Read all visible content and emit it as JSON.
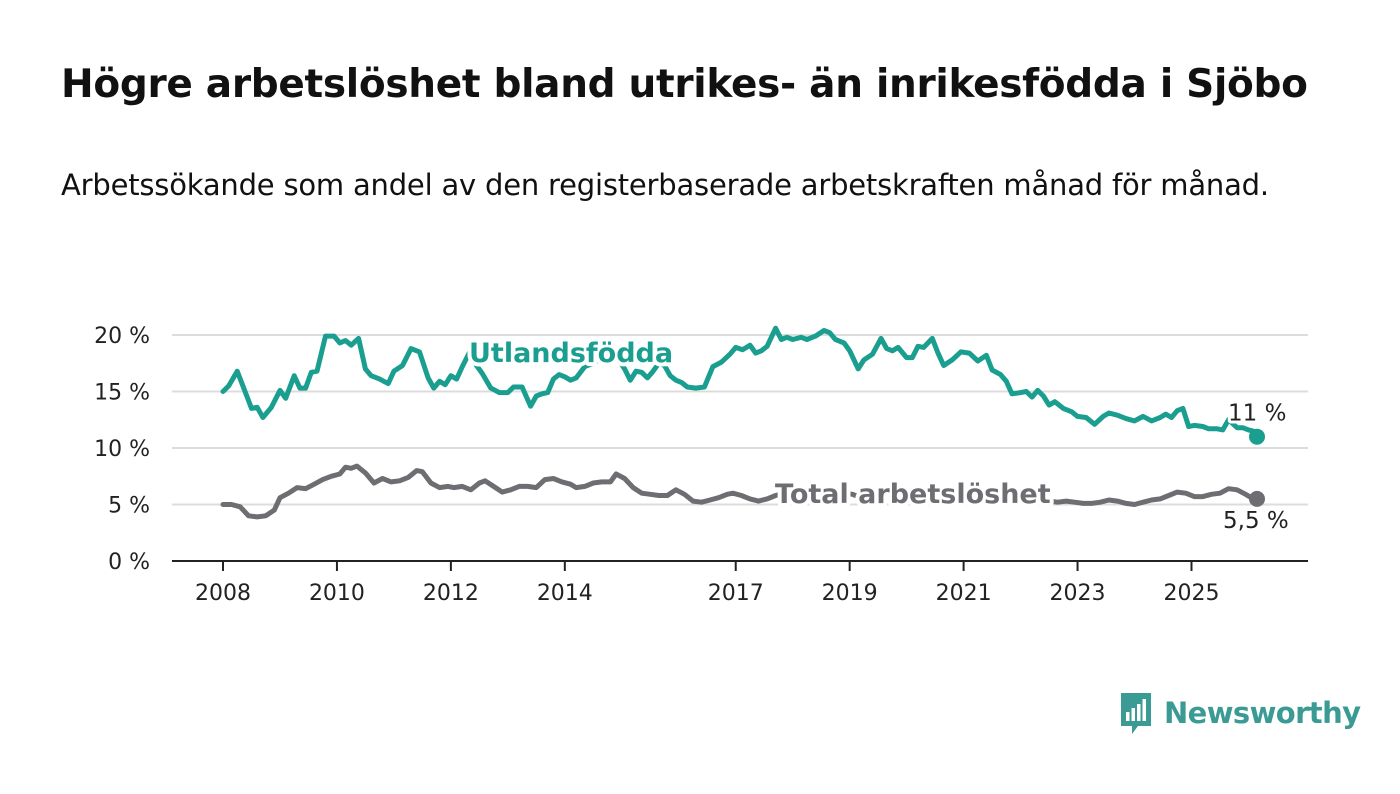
{
  "title": "Högre arbetslöshet bland utrikes- än inrikesfödda i Sjöbo",
  "subtitle": "Arbetssökande som andel av den registerbaserade arbetskraften månad för månad.",
  "logo": {
    "text": "Newsworthy",
    "icon": "bar-chart-speech-bubble-icon"
  },
  "colors": {
    "utlandsfodda": "#1a9e8f",
    "total": "#6e6e72",
    "logo": "#3a9a94",
    "text": "#111111"
  },
  "chart_data": {
    "type": "line",
    "xlim": [
      2008,
      2025.5
    ],
    "ylim": [
      0,
      20
    ],
    "y_ticks": [
      {
        "value": 0,
        "label": "0 %"
      },
      {
        "value": 5,
        "label": "5 %"
      },
      {
        "value": 10,
        "label": "10 %"
      },
      {
        "value": 15,
        "label": "15 %"
      },
      {
        "value": 20,
        "label": "20 %"
      }
    ],
    "x_ticks": [
      {
        "value": 2008,
        "label": "2008"
      },
      {
        "value": 2010,
        "label": "2010"
      },
      {
        "value": 2012,
        "label": "2012"
      },
      {
        "value": 2014,
        "label": "2014"
      },
      {
        "value": 2017,
        "label": "2017"
      },
      {
        "value": 2019,
        "label": "2019"
      },
      {
        "value": 2021,
        "label": "2021"
      },
      {
        "value": 2023,
        "label": "2023"
      },
      {
        "value": 2025,
        "label": "2025"
      }
    ],
    "grid": true,
    "series": [
      {
        "name": "Utlandsfödda",
        "color": "#1a9e8f",
        "end_label": "11 %",
        "points": [
          [
            2008.0,
            15.0
          ],
          [
            2008.1,
            15.5
          ],
          [
            2008.25,
            16.8
          ],
          [
            2008.35,
            15.5
          ],
          [
            2008.5,
            13.5
          ],
          [
            2008.6,
            13.6
          ],
          [
            2008.7,
            12.7
          ],
          [
            2008.85,
            13.6
          ],
          [
            2009.0,
            15.1
          ],
          [
            2009.1,
            14.4
          ],
          [
            2009.25,
            16.4
          ],
          [
            2009.35,
            15.3
          ],
          [
            2009.45,
            15.3
          ],
          [
            2009.55,
            16.7
          ],
          [
            2009.65,
            16.8
          ],
          [
            2009.8,
            19.9
          ],
          [
            2009.95,
            19.9
          ],
          [
            2010.05,
            19.3
          ],
          [
            2010.15,
            19.5
          ],
          [
            2010.25,
            19.1
          ],
          [
            2010.38,
            19.7
          ],
          [
            2010.5,
            17.0
          ],
          [
            2010.6,
            16.4
          ],
          [
            2010.75,
            16.1
          ],
          [
            2010.9,
            15.7
          ],
          [
            2011.0,
            16.8
          ],
          [
            2011.15,
            17.3
          ],
          [
            2011.3,
            18.8
          ],
          [
            2011.45,
            18.5
          ],
          [
            2011.6,
            16.2
          ],
          [
            2011.7,
            15.3
          ],
          [
            2011.8,
            15.9
          ],
          [
            2011.9,
            15.6
          ],
          [
            2012.0,
            16.4
          ],
          [
            2012.1,
            16.1
          ],
          [
            2012.2,
            17.2
          ],
          [
            2012.35,
            18.7
          ],
          [
            2012.45,
            17.3
          ],
          [
            2012.55,
            16.6
          ],
          [
            2012.7,
            15.3
          ],
          [
            2012.85,
            14.9
          ],
          [
            2013.0,
            14.9
          ],
          [
            2013.1,
            15.4
          ],
          [
            2013.25,
            15.4
          ],
          [
            2013.4,
            13.7
          ],
          [
            2013.5,
            14.6
          ],
          [
            2013.6,
            14.8
          ],
          [
            2013.7,
            14.9
          ],
          [
            2013.8,
            16.1
          ],
          [
            2013.9,
            16.5
          ],
          [
            2014.0,
            16.3
          ],
          [
            2014.1,
            16.0
          ],
          [
            2014.2,
            16.2
          ],
          [
            2014.35,
            17.2
          ],
          [
            2014.5,
            17.5
          ],
          [
            2014.65,
            18.0
          ],
          [
            2014.8,
            18.3
          ],
          [
            2014.95,
            17.8
          ],
          [
            2015.05,
            17.0
          ],
          [
            2015.15,
            16.0
          ],
          [
            2015.25,
            16.8
          ],
          [
            2015.35,
            16.7
          ],
          [
            2015.45,
            16.2
          ],
          [
            2015.55,
            16.8
          ],
          [
            2015.65,
            17.5
          ],
          [
            2015.75,
            17.3
          ],
          [
            2015.85,
            16.4
          ],
          [
            2015.95,
            16.0
          ],
          [
            2016.05,
            15.8
          ],
          [
            2016.15,
            15.4
          ],
          [
            2016.3,
            15.3
          ],
          [
            2016.45,
            15.4
          ],
          [
            2016.6,
            17.2
          ],
          [
            2016.75,
            17.6
          ],
          [
            2016.9,
            18.3
          ],
          [
            2017.0,
            18.9
          ],
          [
            2017.12,
            18.7
          ],
          [
            2017.25,
            19.1
          ],
          [
            2017.35,
            18.4
          ],
          [
            2017.45,
            18.6
          ],
          [
            2017.55,
            19.0
          ],
          [
            2017.7,
            20.6
          ],
          [
            2017.8,
            19.6
          ],
          [
            2017.9,
            19.8
          ],
          [
            2018.0,
            19.6
          ],
          [
            2018.15,
            19.8
          ],
          [
            2018.25,
            19.6
          ],
          [
            2018.4,
            19.9
          ],
          [
            2018.55,
            20.4
          ],
          [
            2018.65,
            20.2
          ],
          [
            2018.75,
            19.6
          ],
          [
            2018.9,
            19.3
          ],
          [
            2019.0,
            18.6
          ],
          [
            2019.15,
            17.0
          ],
          [
            2019.25,
            17.8
          ],
          [
            2019.4,
            18.3
          ],
          [
            2019.55,
            19.7
          ],
          [
            2019.65,
            18.8
          ],
          [
            2019.75,
            18.6
          ],
          [
            2019.85,
            18.9
          ],
          [
            2020.0,
            18.0
          ],
          [
            2020.1,
            18.0
          ],
          [
            2020.2,
            19.0
          ],
          [
            2020.3,
            18.9
          ],
          [
            2020.45,
            19.7
          ],
          [
            2020.55,
            18.4
          ],
          [
            2020.65,
            17.3
          ],
          [
            2020.8,
            17.8
          ],
          [
            2020.95,
            18.5
          ],
          [
            2021.1,
            18.4
          ],
          [
            2021.25,
            17.7
          ],
          [
            2021.4,
            18.2
          ],
          [
            2021.5,
            16.9
          ],
          [
            2021.65,
            16.5
          ],
          [
            2021.75,
            15.9
          ],
          [
            2021.85,
            14.8
          ],
          [
            2022.0,
            14.9
          ],
          [
            2022.1,
            15.0
          ],
          [
            2022.2,
            14.5
          ],
          [
            2022.3,
            15.1
          ],
          [
            2022.4,
            14.6
          ],
          [
            2022.5,
            13.8
          ],
          [
            2022.6,
            14.1
          ],
          [
            2022.75,
            13.5
          ],
          [
            2022.9,
            13.2
          ],
          [
            2023.0,
            12.8
          ],
          [
            2023.15,
            12.7
          ],
          [
            2023.3,
            12.1
          ],
          [
            2023.45,
            12.8
          ],
          [
            2023.55,
            13.1
          ],
          [
            2023.7,
            12.9
          ],
          [
            2023.85,
            12.6
          ],
          [
            2024.0,
            12.4
          ],
          [
            2024.15,
            12.8
          ],
          [
            2024.3,
            12.4
          ],
          [
            2024.45,
            12.7
          ],
          [
            2024.55,
            13.0
          ],
          [
            2024.65,
            12.7
          ],
          [
            2024.75,
            13.3
          ],
          [
            2024.85,
            13.5
          ],
          [
            2024.95,
            11.9
          ],
          [
            2025.05,
            12.0
          ],
          [
            2025.2,
            11.9
          ],
          [
            2025.3,
            11.7
          ],
          [
            2025.45,
            11.7
          ],
          [
            2025.55,
            11.6
          ],
          [
            2025.65,
            12.5
          ],
          [
            2025.8,
            11.8
          ],
          [
            2025.9,
            11.8
          ],
          [
            2026.0,
            11.6
          ],
          [
            2026.08,
            11.5
          ],
          [
            2026.15,
            11.0
          ]
        ]
      },
      {
        "name": "Total arbetslöshet",
        "color": "#6e6e72",
        "end_label": "5,5 %",
        "points": [
          [
            2008.0,
            5.0
          ],
          [
            2008.15,
            5.0
          ],
          [
            2008.3,
            4.8
          ],
          [
            2008.45,
            4.0
          ],
          [
            2008.6,
            3.9
          ],
          [
            2008.75,
            4.0
          ],
          [
            2008.9,
            4.5
          ],
          [
            2009.0,
            5.6
          ],
          [
            2009.15,
            6.0
          ],
          [
            2009.3,
            6.5
          ],
          [
            2009.45,
            6.4
          ],
          [
            2009.6,
            6.8
          ],
          [
            2009.75,
            7.2
          ],
          [
            2009.9,
            7.5
          ],
          [
            2010.05,
            7.7
          ],
          [
            2010.15,
            8.3
          ],
          [
            2010.25,
            8.2
          ],
          [
            2010.35,
            8.4
          ],
          [
            2010.5,
            7.8
          ],
          [
            2010.65,
            6.9
          ],
          [
            2010.8,
            7.3
          ],
          [
            2010.95,
            7.0
          ],
          [
            2011.1,
            7.1
          ],
          [
            2011.25,
            7.4
          ],
          [
            2011.4,
            8.0
          ],
          [
            2011.5,
            7.9
          ],
          [
            2011.65,
            6.9
          ],
          [
            2011.8,
            6.5
          ],
          [
            2011.95,
            6.6
          ],
          [
            2012.05,
            6.5
          ],
          [
            2012.2,
            6.6
          ],
          [
            2012.35,
            6.3
          ],
          [
            2012.5,
            6.9
          ],
          [
            2012.6,
            7.1
          ],
          [
            2012.75,
            6.6
          ],
          [
            2012.9,
            6.1
          ],
          [
            2013.05,
            6.3
          ],
          [
            2013.2,
            6.6
          ],
          [
            2013.35,
            6.6
          ],
          [
            2013.5,
            6.5
          ],
          [
            2013.65,
            7.2
          ],
          [
            2013.8,
            7.3
          ],
          [
            2013.95,
            7.0
          ],
          [
            2014.1,
            6.8
          ],
          [
            2014.2,
            6.5
          ],
          [
            2014.35,
            6.6
          ],
          [
            2014.5,
            6.9
          ],
          [
            2014.65,
            7.0
          ],
          [
            2014.8,
            7.0
          ],
          [
            2014.9,
            7.7
          ],
          [
            2015.05,
            7.3
          ],
          [
            2015.2,
            6.5
          ],
          [
            2015.35,
            6.0
          ],
          [
            2015.5,
            5.9
          ],
          [
            2015.65,
            5.8
          ],
          [
            2015.8,
            5.8
          ],
          [
            2015.95,
            6.3
          ],
          [
            2016.1,
            5.9
          ],
          [
            2016.25,
            5.3
          ],
          [
            2016.4,
            5.2
          ],
          [
            2016.55,
            5.4
          ],
          [
            2016.7,
            5.6
          ],
          [
            2016.85,
            5.9
          ],
          [
            2016.95,
            6.0
          ],
          [
            2017.1,
            5.8
          ],
          [
            2017.25,
            5.5
          ],
          [
            2017.4,
            5.3
          ],
          [
            2017.55,
            5.5
          ],
          [
            2017.7,
            5.8
          ],
          [
            2017.85,
            6.0
          ],
          [
            2018.0,
            5.9
          ],
          [
            2018.15,
            6.1
          ],
          [
            2018.3,
            5.8
          ],
          [
            2018.45,
            5.7
          ],
          [
            2018.6,
            5.9
          ],
          [
            2018.75,
            6.1
          ],
          [
            2018.9,
            6.0
          ],
          [
            2019.05,
            5.9
          ],
          [
            2019.2,
            5.6
          ],
          [
            2019.35,
            5.8
          ],
          [
            2019.5,
            6.0
          ],
          [
            2019.65,
            6.0
          ],
          [
            2019.8,
            5.9
          ],
          [
            2019.95,
            6.0
          ],
          [
            2020.1,
            6.1
          ],
          [
            2020.25,
            6.2
          ],
          [
            2020.4,
            6.4
          ],
          [
            2020.55,
            6.2
          ],
          [
            2020.7,
            6.0
          ],
          [
            2020.85,
            6.1
          ],
          [
            2021.0,
            6.3
          ],
          [
            2021.15,
            6.1
          ],
          [
            2021.3,
            6.0
          ],
          [
            2021.45,
            6.2
          ],
          [
            2021.6,
            6.0
          ],
          [
            2021.75,
            5.9
          ],
          [
            2021.9,
            6.1
          ],
          [
            2022.05,
            6.2
          ],
          [
            2022.2,
            6.0
          ],
          [
            2022.35,
            5.7
          ],
          [
            2022.5,
            5.3
          ],
          [
            2022.65,
            5.2
          ],
          [
            2022.8,
            5.3
          ],
          [
            2022.95,
            5.2
          ],
          [
            2023.1,
            5.1
          ],
          [
            2023.25,
            5.1
          ],
          [
            2023.4,
            5.2
          ],
          [
            2023.55,
            5.4
          ],
          [
            2023.7,
            5.3
          ],
          [
            2023.85,
            5.1
          ],
          [
            2024.0,
            5.0
          ],
          [
            2024.15,
            5.2
          ],
          [
            2024.3,
            5.4
          ],
          [
            2024.45,
            5.5
          ],
          [
            2024.6,
            5.8
          ],
          [
            2024.75,
            6.1
          ],
          [
            2024.9,
            6.0
          ],
          [
            2025.05,
            5.7
          ],
          [
            2025.2,
            5.7
          ],
          [
            2025.35,
            5.9
          ],
          [
            2025.5,
            6.0
          ],
          [
            2025.65,
            6.4
          ],
          [
            2025.8,
            6.3
          ],
          [
            2025.95,
            5.9
          ],
          [
            2026.05,
            5.6
          ],
          [
            2026.15,
            5.5
          ]
        ]
      }
    ],
    "series_labels": {
      "utlandsfodda": "Utlandsfödda",
      "total": "Total arbetslöshet"
    }
  }
}
